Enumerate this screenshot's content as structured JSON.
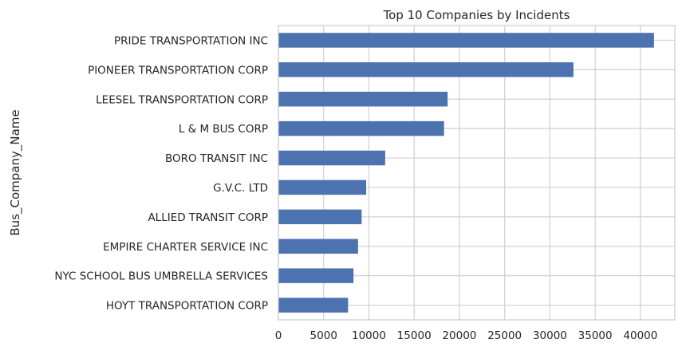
{
  "chart_data": {
    "type": "bar",
    "orientation": "horizontal",
    "title": "Top 10 Companies by Incidents",
    "xlabel": "",
    "ylabel": "Bus_Company_Name",
    "categories": [
      "PRIDE TRANSPORTATION INC",
      "PIONEER TRANSPORTATION CORP",
      "LEESEL TRANSPORTATION CORP",
      "L & M BUS CORP",
      "BORO TRANSIT INC",
      "G.V.C. LTD",
      "ALLIED TRANSIT CORP",
      "EMPIRE CHARTER SERVICE INC",
      "NYC SCHOOL BUS UMBRELLA SERVICES",
      "HOYT TRANSPORTATION CORP"
    ],
    "values": [
      41500,
      32600,
      18700,
      18300,
      11800,
      9700,
      9200,
      8800,
      8300,
      7700
    ],
    "xlim": [
      0,
      43800
    ],
    "xticks": [
      "0",
      "5000",
      "10000",
      "15000",
      "20000",
      "25000",
      "30000",
      "35000",
      "40000"
    ],
    "grid": true,
    "bar_color": "#4c72b0"
  }
}
